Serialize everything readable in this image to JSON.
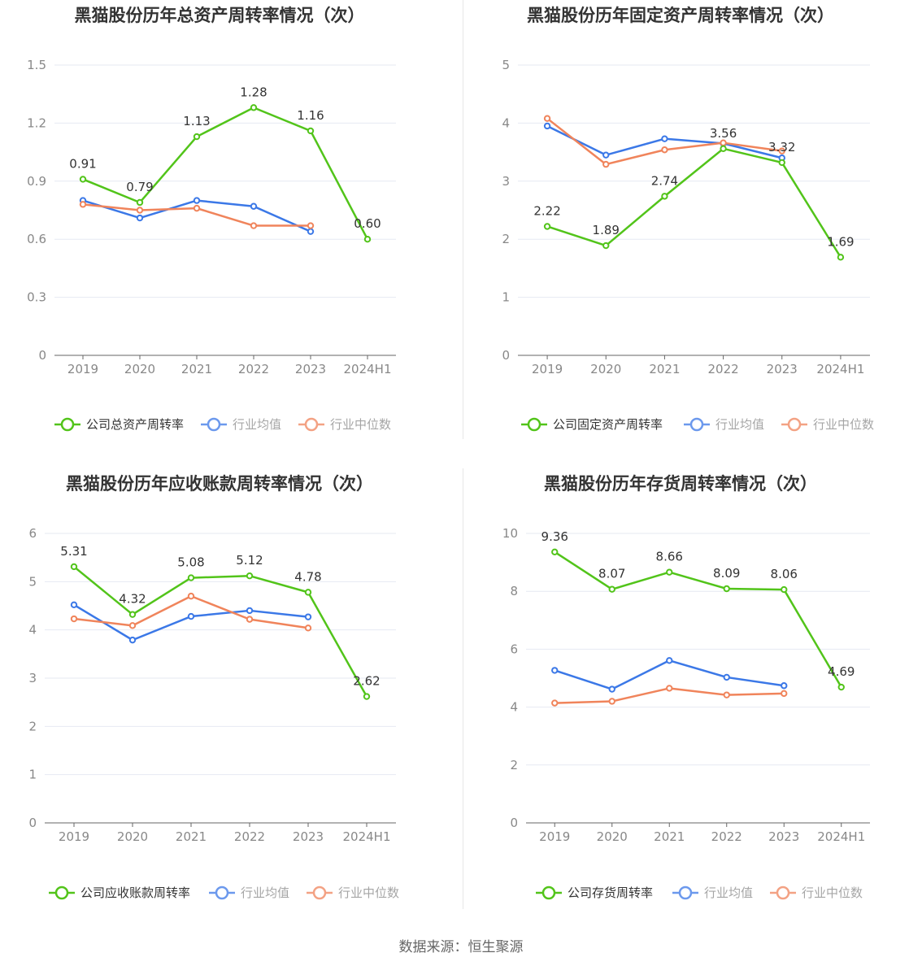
{
  "source": "数据来源：恒生聚源",
  "colors": {
    "company": "#52c41a",
    "industry_avg": "#3b78e7",
    "industry_median": "#f0845b",
    "grid": "#e6e9f2",
    "axis": "#666666"
  },
  "chart_data": [
    {
      "type": "line",
      "title": "黑猫股份历年总资产周转率情况（次）",
      "categories": [
        "2019",
        "2020",
        "2021",
        "2022",
        "2023",
        "2024H1"
      ],
      "yticks": [
        "0",
        "0.3",
        "0.6",
        "0.9",
        "1.2",
        "1.5"
      ],
      "ylim": [
        0,
        1.5
      ],
      "series": [
        {
          "name": "公司总资产周转率",
          "key": "company",
          "values": [
            0.91,
            0.79,
            1.13,
            1.28,
            1.16,
            0.6
          ],
          "labels": [
            "0.91",
            "0.79",
            "1.13",
            "1.28",
            "1.16",
            "0.60"
          ]
        },
        {
          "name": "行业均值",
          "key": "industry_avg",
          "values": [
            0.8,
            0.71,
            0.8,
            0.77,
            0.64,
            null
          ]
        },
        {
          "name": "行业中位数",
          "key": "industry_median",
          "values": [
            0.78,
            0.75,
            0.76,
            0.67,
            0.67,
            null
          ]
        }
      ]
    },
    {
      "type": "line",
      "title": "黑猫股份历年固定资产周转率情况（次）",
      "categories": [
        "2019",
        "2020",
        "2021",
        "2022",
        "2023",
        "2024H1"
      ],
      "yticks": [
        "0",
        "1",
        "2",
        "3",
        "4",
        "5"
      ],
      "ylim": [
        0,
        5
      ],
      "series": [
        {
          "name": "公司固定资产周转率",
          "key": "company",
          "values": [
            2.22,
            1.89,
            2.74,
            3.56,
            3.32,
            1.69
          ],
          "labels": [
            "2.22",
            "1.89",
            "2.74",
            "3.56",
            "3.32",
            "1.69"
          ]
        },
        {
          "name": "行业均值",
          "key": "industry_avg",
          "values": [
            3.95,
            3.45,
            3.73,
            3.65,
            3.4,
            null
          ]
        },
        {
          "name": "行业中位数",
          "key": "industry_median",
          "values": [
            4.08,
            3.29,
            3.54,
            3.66,
            3.52,
            null
          ]
        }
      ]
    },
    {
      "type": "line",
      "title": "黑猫股份历年应收账款周转率情况（次）",
      "categories": [
        "2019",
        "2020",
        "2021",
        "2022",
        "2023",
        "2024H1"
      ],
      "yticks": [
        "0",
        "1",
        "2",
        "3",
        "4",
        "5",
        "6"
      ],
      "ylim": [
        0,
        6
      ],
      "series": [
        {
          "name": "公司应收账款周转率",
          "key": "company",
          "values": [
            5.31,
            4.32,
            5.08,
            5.12,
            4.78,
            2.62
          ],
          "labels": [
            "5.31",
            "4.32",
            "5.08",
            "5.12",
            "4.78",
            "2.62"
          ]
        },
        {
          "name": "行业均值",
          "key": "industry_avg",
          "values": [
            4.52,
            3.79,
            4.28,
            4.4,
            4.27,
            null
          ]
        },
        {
          "name": "行业中位数",
          "key": "industry_median",
          "values": [
            4.23,
            4.09,
            4.7,
            4.22,
            4.04,
            null
          ]
        }
      ]
    },
    {
      "type": "line",
      "title": "黑猫股份历年存货周转率情况（次）",
      "categories": [
        "2019",
        "2020",
        "2021",
        "2022",
        "2023",
        "2024H1"
      ],
      "yticks": [
        "0",
        "2",
        "4",
        "6",
        "8",
        "10"
      ],
      "ylim": [
        0,
        10
      ],
      "series": [
        {
          "name": "公司存货周转率",
          "key": "company",
          "values": [
            9.36,
            8.07,
            8.66,
            8.09,
            8.06,
            4.69
          ],
          "labels": [
            "9.36",
            "8.07",
            "8.66",
            "8.09",
            "8.06",
            "4.69"
          ]
        },
        {
          "name": "行业均值",
          "key": "industry_avg",
          "values": [
            5.27,
            4.62,
            5.61,
            5.03,
            4.74,
            null
          ]
        },
        {
          "name": "行业中位数",
          "key": "industry_median",
          "values": [
            4.14,
            4.2,
            4.65,
            4.42,
            4.47,
            null
          ]
        }
      ]
    }
  ]
}
